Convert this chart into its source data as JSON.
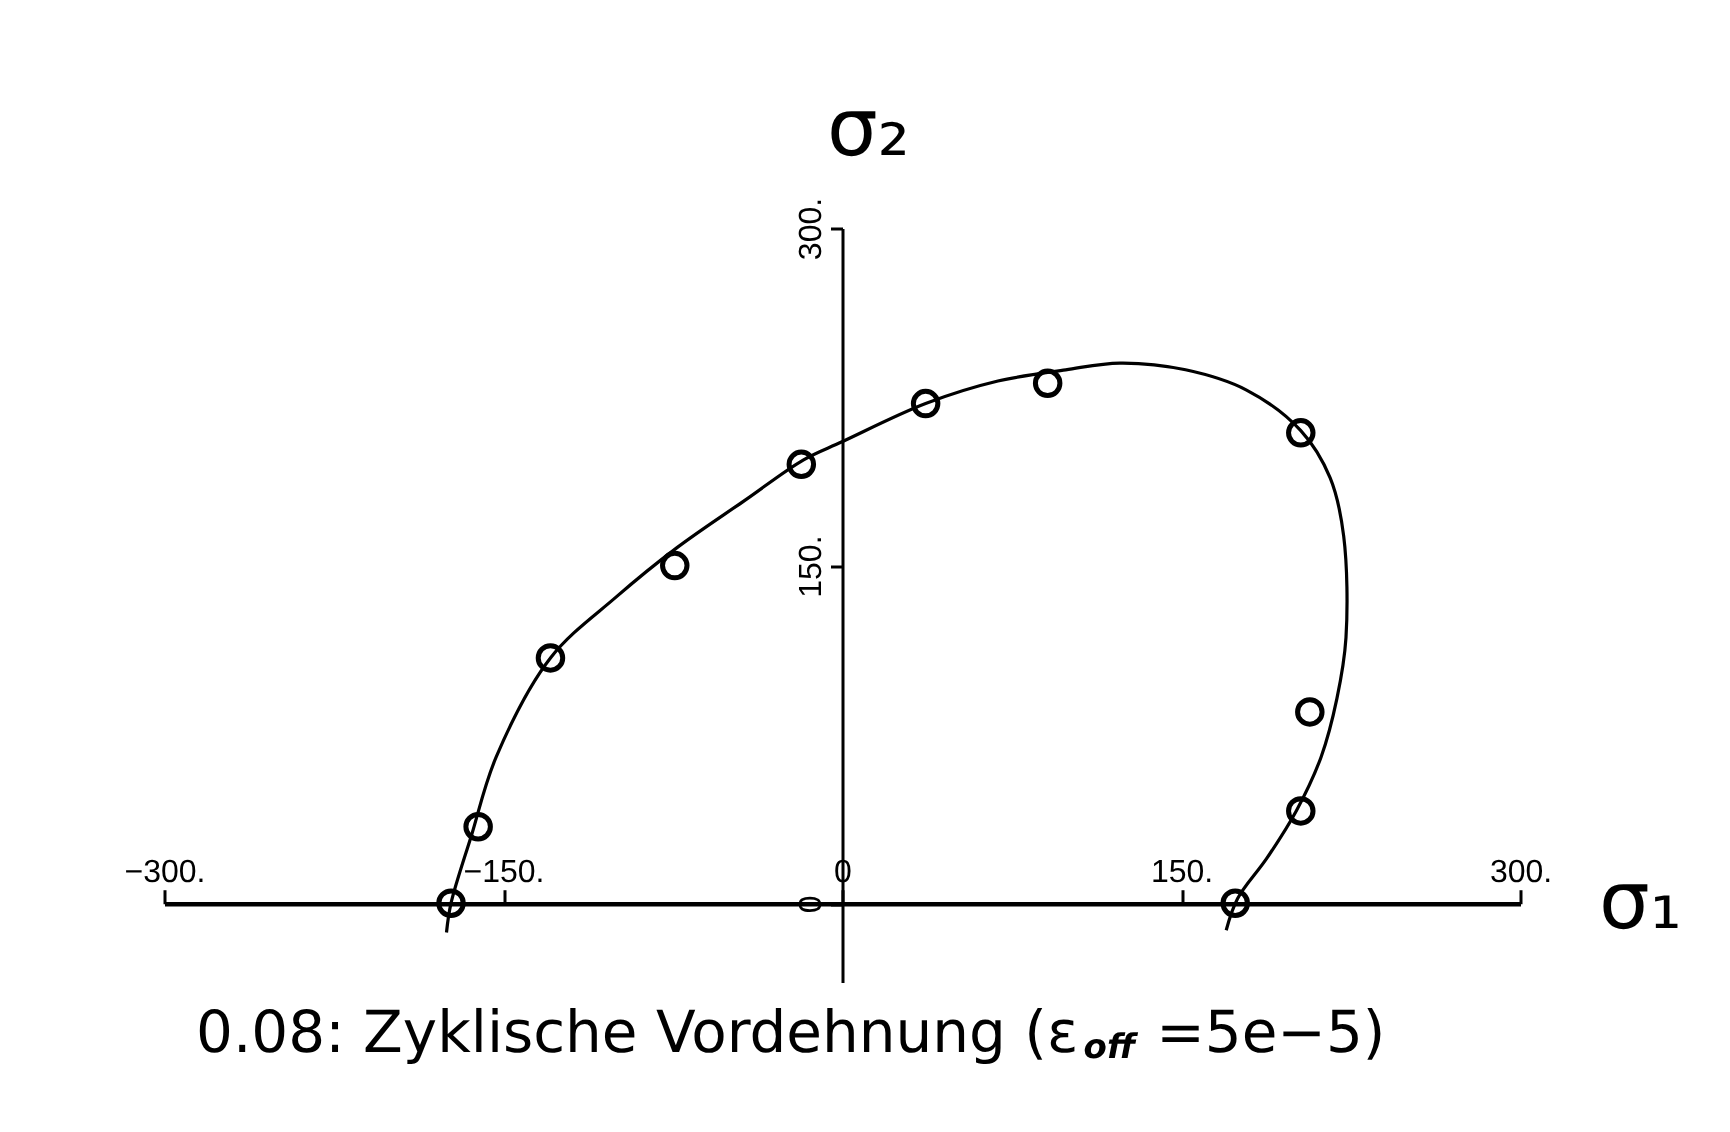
{
  "chart_data": {
    "type": "scatter",
    "xlabel": "σ₁",
    "ylabel": "σ₂",
    "annotations": [
      "0.08: Zyklische Vordehnung (ε$_{off}$ =5e−5)"
    ],
    "xlim": [
      -300,
      300
    ],
    "ylim": [
      -35,
      300
    ],
    "xticks": [
      {
        "value": -300,
        "label": "−300."
      },
      {
        "value": -150,
        "label": "−150."
      },
      0,
      {
        "value": 150,
        "label": "150."
      },
      {
        "value": 300,
        "label": "300."
      }
    ],
    "yticks": [
      0,
      {
        "value": 150,
        "label": "150."
      },
      {
        "value": 300,
        "label": "300."
      }
    ],
    "series": [
      {
        "type": "line",
        "color": "#000000",
        "marker": "none",
        "line_style": "solid",
        "x": [
          -175,
          -173,
          -164,
          -153,
          -129,
          -100,
          -73,
          -43,
          -17,
          0,
          37,
          69,
          99,
          123,
          152,
          179,
          203,
          216,
          222,
          223,
          219,
          212,
          201,
          188,
          175,
          170
        ],
        "values": [
          -13,
          0,
          30,
          65,
          109,
          136,
          158,
          179,
          197,
          205,
          222,
          232,
          237,
          240,
          237,
          228,
          210,
          189,
          163,
          118,
          91,
          65,
          41,
          20,
          2,
          -12
        ]
      },
      {
        "color": "#000000",
        "marker": "circle",
        "x": [
          -173,
          -161,
          -129,
          -74,
          -18,
          37,
          91,
          203,
          207,
          203,
          174
        ],
        "values": [
          0,
          34,
          109,
          150,
          195,
          222,
          231,
          209,
          85,
          41,
          0
        ]
      }
    ]
  }
}
